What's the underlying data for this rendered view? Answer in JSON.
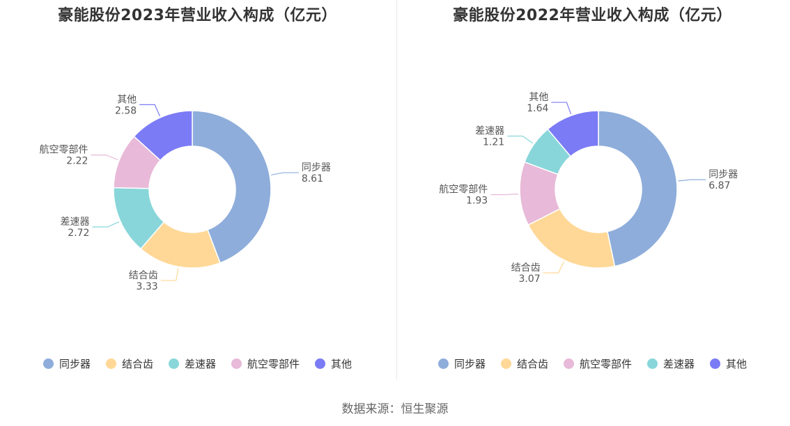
{
  "chart_data": [
    {
      "type": "pie",
      "title": "豪能股份2023年营业收入构成（亿元）",
      "slices": [
        {
          "name": "同步器",
          "value": 8.61,
          "color": "#8EADDB"
        },
        {
          "name": "结合齿",
          "value": 3.33,
          "color": "#FFD897"
        },
        {
          "name": "差速器",
          "value": 2.72,
          "color": "#88D6DA"
        },
        {
          "name": "航空零部件",
          "value": 2.22,
          "color": "#E8B9D8"
        },
        {
          "name": "其他",
          "value": 2.58,
          "color": "#7B7BF6"
        }
      ],
      "legend_position": "bottom"
    },
    {
      "type": "pie",
      "title": "豪能股份2022年营业收入构成（亿元）",
      "slices": [
        {
          "name": "同步器",
          "value": 6.87,
          "color": "#8EADDB"
        },
        {
          "name": "结合齿",
          "value": 3.07,
          "color": "#FFD897"
        },
        {
          "name": "航空零部件",
          "value": 1.93,
          "color": "#E8B9D8"
        },
        {
          "name": "差速器",
          "value": 1.21,
          "color": "#88D6DA"
        },
        {
          "name": "其他",
          "value": 1.64,
          "color": "#7B7BF6"
        }
      ],
      "legend_position": "bottom"
    }
  ],
  "footer": {
    "source": "数据来源：恒生聚源"
  }
}
